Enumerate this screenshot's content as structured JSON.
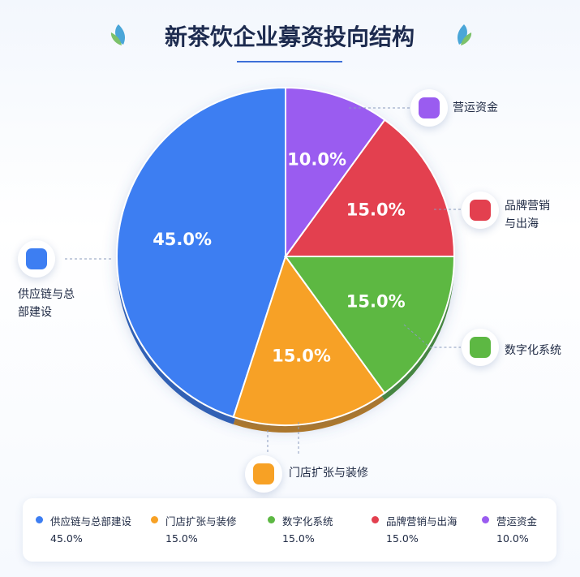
{
  "chart_data": {
    "type": "pie",
    "title": "新茶饮企业募资投向结构",
    "categories": [
      "供应链与总部建设",
      "门店扩张与装修",
      "数字化系统",
      "品牌营销与出海",
      "营运资金"
    ],
    "values": [
      45,
      15,
      15,
      15,
      10
    ],
    "value_labels": [
      "45.0%",
      "15.0%",
      "15.0%",
      "15.0%",
      "10.0%"
    ],
    "colors": [
      "#3d7ef2",
      "#f7a125",
      "#5db843",
      "#e3404f",
      "#9a5cf0"
    ]
  }
}
